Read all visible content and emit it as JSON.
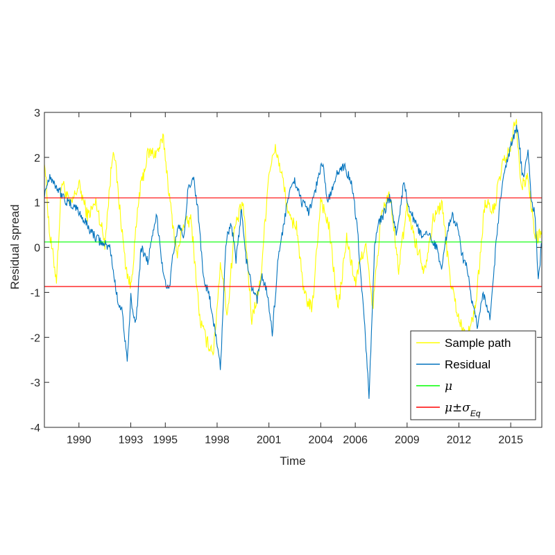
{
  "chart_data": {
    "type": "line",
    "title": "",
    "xlabel": "Time",
    "ylabel": "Residual spread",
    "xlim": [
      1988.0,
      2016.8
    ],
    "ylim": [
      -4,
      3
    ],
    "x_ticks": [
      {
        "value": 1990.0,
        "label": "1990"
      },
      {
        "value": 1993.0,
        "label": "1993"
      },
      {
        "value": 1995.0,
        "label": "1995"
      },
      {
        "value": 1998.0,
        "label": "1998"
      },
      {
        "value": 2001.0,
        "label": "2001"
      },
      {
        "value": 2004.0,
        "label": "2004"
      },
      {
        "value": 2006.0,
        "label": "2006"
      },
      {
        "value": 2009.0,
        "label": "2009"
      },
      {
        "value": 2012.0,
        "label": "2012"
      },
      {
        "value": 2015.0,
        "label": "2015"
      }
    ],
    "y_ticks": [
      {
        "value": -4,
        "label": "-4"
      },
      {
        "value": -3,
        "label": "-3"
      },
      {
        "value": -2,
        "label": "-2"
      },
      {
        "value": -1,
        "label": "-1"
      },
      {
        "value": 0,
        "label": "0"
      },
      {
        "value": 1,
        "label": "1"
      },
      {
        "value": 2,
        "label": "2"
      },
      {
        "value": 3,
        "label": "3"
      }
    ],
    "grid": false,
    "legend_position": "bottom-right",
    "legend": [
      {
        "label": "Sample path",
        "color": "#ffff00"
      },
      {
        "label": "Residual",
        "color": "#0072bd"
      },
      {
        "symbol": "μ",
        "sub": "",
        "color": "#00ff00"
      },
      {
        "symbol": "μ±σ",
        "sub": "Eq",
        "color": "#ff0000"
      }
    ],
    "series": [
      {
        "name": "Sample path",
        "color": "#ffff00",
        "x": [
          1988.0,
          1988.3,
          1988.7,
          1989.0,
          1989.5,
          1990.0,
          1990.5,
          1991.0,
          1991.5,
          1992.0,
          1992.3,
          1992.7,
          1993.0,
          1993.5,
          1994.0,
          1994.5,
          1994.9,
          1995.3,
          1995.7,
          1996.0,
          1996.5,
          1997.0,
          1997.4,
          1997.8,
          1998.2,
          1998.6,
          1999.0,
          1999.5,
          2000.0,
          2000.5,
          2001.0,
          2001.4,
          2001.8,
          2002.2,
          2002.6,
          2003.0,
          2003.5,
          2004.0,
          2004.5,
          2005.0,
          2005.5,
          2006.0,
          2006.3,
          2006.6,
          2007.0,
          2007.5,
          2008.0,
          2008.5,
          2009.0,
          2009.5,
          2010.0,
          2010.5,
          2011.0,
          2011.5,
          2012.0,
          2012.3,
          2012.6,
          2013.0,
          2013.5,
          2014.0,
          2014.5,
          2015.0,
          2015.3,
          2015.6,
          2016.0,
          2016.4,
          2016.8
        ],
        "values": [
          2.0,
          0.3,
          -0.7,
          1.5,
          0.9,
          1.4,
          0.7,
          1.0,
          0.1,
          2.3,
          1.1,
          -0.4,
          -0.9,
          1.2,
          2.1,
          2.1,
          2.4,
          0.9,
          -0.2,
          0.5,
          0.6,
          -1.6,
          -2.1,
          -2.3,
          -0.3,
          -1.5,
          0.4,
          1.0,
          -1.6,
          -0.8,
          1.7,
          2.2,
          1.5,
          0.6,
          0.5,
          -1.0,
          -1.4,
          1.1,
          0.4,
          -1.4,
          0.2,
          -0.8,
          -0.3,
          0.1,
          -1.4,
          0.7,
          1.2,
          -0.5,
          0.9,
          0.1,
          -0.5,
          0.6,
          1.0,
          -0.7,
          -1.6,
          -1.9,
          -1.9,
          -1.2,
          1.0,
          0.8,
          1.8,
          2.2,
          2.9,
          1.3,
          1.6,
          0.2,
          0.3
        ]
      },
      {
        "name": "Residual",
        "color": "#0072bd",
        "x": [
          1988.0,
          1988.3,
          1988.8,
          1989.3,
          1989.8,
          1990.3,
          1990.8,
          1991.3,
          1991.8,
          1992.2,
          1992.5,
          1992.8,
          1993.0,
          1993.3,
          1993.6,
          1994.0,
          1994.5,
          1994.9,
          1995.2,
          1995.5,
          1995.8,
          1996.1,
          1996.3,
          1996.6,
          1996.9,
          1997.2,
          1997.6,
          1997.9,
          1998.2,
          1998.5,
          1998.8,
          1999.1,
          1999.4,
          1999.7,
          2000.0,
          2000.3,
          2000.6,
          2000.9,
          2001.2,
          2001.5,
          2001.8,
          2002.1,
          2002.5,
          2002.9,
          2003.3,
          2003.7,
          2004.1,
          2004.4,
          2004.7,
          2005.0,
          2005.4,
          2005.8,
          2006.1,
          2006.4,
          2006.6,
          2006.8,
          2007.0,
          2007.1,
          2007.3,
          2007.6,
          2008.0,
          2008.4,
          2008.8,
          2009.1,
          2009.5,
          2009.9,
          2010.3,
          2010.7,
          2011.0,
          2011.3,
          2011.6,
          2011.9,
          2012.2,
          2012.5,
          2012.8,
          2013.1,
          2013.4,
          2013.8,
          2014.2,
          2014.5,
          2014.8,
          2015.1,
          2015.4,
          2015.7,
          2016.0,
          2016.2,
          2016.4,
          2016.6,
          2016.8
        ],
        "values": [
          1.2,
          1.6,
          1.3,
          1.0,
          0.9,
          0.6,
          0.3,
          0.1,
          0.0,
          -1.1,
          -1.4,
          -2.6,
          -1.1,
          -1.7,
          0.0,
          -0.3,
          0.7,
          -0.6,
          -1.0,
          0.0,
          0.5,
          0.2,
          1.2,
          1.6,
          0.8,
          -0.6,
          -1.2,
          -1.9,
          -2.7,
          0.1,
          0.6,
          -0.3,
          0.8,
          -0.3,
          -0.9,
          -1.2,
          -0.6,
          -1.0,
          -1.9,
          -0.4,
          0.4,
          1.1,
          1.5,
          1.0,
          0.8,
          1.3,
          1.9,
          1.0,
          1.3,
          1.7,
          1.8,
          1.4,
          0.5,
          -1.0,
          -2.1,
          -3.3,
          -1.2,
          -0.1,
          0.5,
          0.7,
          1.1,
          0.3,
          1.4,
          0.9,
          0.5,
          0.2,
          0.3,
          0.0,
          -0.4,
          0.3,
          0.7,
          0.5,
          -0.2,
          -0.5,
          -1.3,
          -1.8,
          -1.0,
          -1.6,
          0.3,
          1.4,
          1.9,
          2.4,
          2.7,
          1.5,
          2.2,
          1.0,
          0.8,
          -0.8,
          0.2
        ]
      },
      {
        "name": "μ",
        "color": "#00ff00",
        "x": [
          1988.0,
          2016.8
        ],
        "values": [
          0.12,
          0.12
        ]
      },
      {
        "name": "μ±σ upper",
        "color": "#ff0000",
        "x": [
          1988.0,
          2016.8
        ],
        "values": [
          1.1,
          1.1
        ]
      },
      {
        "name": "μ±σ lower",
        "color": "#ff0000",
        "x": [
          1988.0,
          2016.8
        ],
        "values": [
          -0.87,
          -0.87
        ]
      }
    ]
  }
}
